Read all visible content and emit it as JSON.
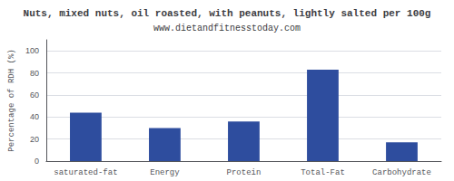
{
  "chart_data": {
    "type": "bar",
    "title": "Nuts, mixed nuts, oil roasted, with peanuts, lightly salted per 100g",
    "subtitle": "www.dietandfitnesstoday.com",
    "categories": [
      "saturated-fat",
      "Energy",
      "Protein",
      "Total-Fat",
      "Carbohydrate"
    ],
    "values": [
      44,
      30,
      36,
      83,
      17
    ],
    "color": "#2e4d9e",
    "ylabel": "Percentage of RDH (%)",
    "ylim": [
      0,
      110
    ],
    "yticks": [
      0,
      20,
      40,
      60,
      80,
      100
    ],
    "grid": true
  }
}
